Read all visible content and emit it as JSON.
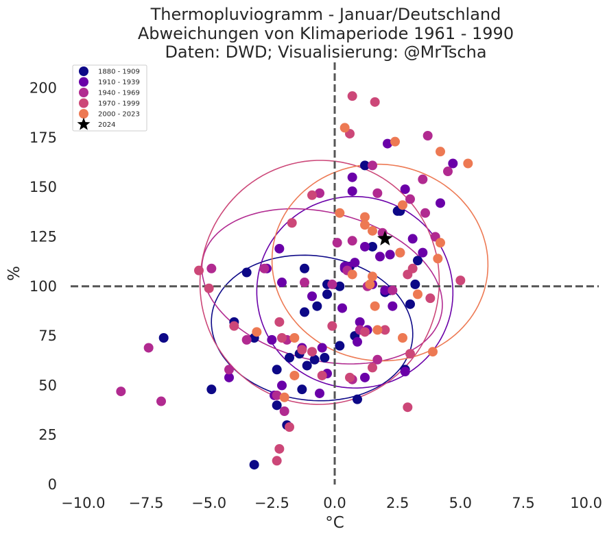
{
  "chart_data": {
    "type": "scatter",
    "title": [
      "Thermopluviogramm - Januar/Deutschland",
      "Abweichungen von Klimaperiode 1961 - 1990",
      "Daten: DWD; Visualisierung: @MrTscha"
    ],
    "xlabel": "°C",
    "ylabel": "%",
    "xlim": [
      -10.5,
      10.5
    ],
    "ylim": [
      0,
      213
    ],
    "xticks": [
      -10.0,
      -7.5,
      -5.0,
      -2.5,
      0.0,
      2.5,
      5.0,
      7.5,
      10.0
    ],
    "xtick_labels": [
      "−10.0",
      "−7.5",
      "−5.0",
      "−2.5",
      "0.0",
      "2.5",
      "5.0",
      "7.5",
      "10.0"
    ],
    "yticks": [
      0,
      25,
      50,
      75,
      100,
      125,
      150,
      175,
      200
    ],
    "ytick_labels": [
      "0",
      "25",
      "50",
      "75",
      "100",
      "125",
      "150",
      "175",
      "200"
    ],
    "reference_lines": {
      "x": 0,
      "y": 100,
      "style": "dashed",
      "color": "#555555"
    },
    "legend_position": "top-left",
    "grid": false,
    "series": [
      {
        "name": "1880 - 1909",
        "color": "#0d0887",
        "points": [
          [
            -6.8,
            74
          ],
          [
            -4.0,
            82
          ],
          [
            -3.5,
            107
          ],
          [
            -3.2,
            74
          ],
          [
            -3.2,
            10
          ],
          [
            -2.3,
            58
          ],
          [
            -2.3,
            40
          ],
          [
            -1.9,
            30
          ],
          [
            -1.8,
            64
          ],
          [
            -1.4,
            66
          ],
          [
            -1.3,
            48
          ],
          [
            -1.2,
            87
          ],
          [
            -1.1,
            60
          ],
          [
            -1.2,
            109
          ],
          [
            -0.8,
            63
          ],
          [
            -0.7,
            90
          ],
          [
            -0.4,
            64
          ],
          [
            -0.3,
            101
          ],
          [
            -0.3,
            96
          ],
          [
            0.2,
            70
          ],
          [
            0.2,
            100
          ],
          [
            0.6,
            110
          ],
          [
            0.8,
            75
          ],
          [
            0.9,
            43
          ],
          [
            1.2,
            161
          ],
          [
            1.5,
            120
          ],
          [
            2.0,
            97
          ],
          [
            2.2,
            98
          ],
          [
            2.5,
            138
          ],
          [
            2.6,
            138
          ],
          [
            2.8,
            58
          ],
          [
            3.0,
            91
          ],
          [
            3.2,
            101
          ],
          [
            3.3,
            113
          ],
          [
            -4.9,
            48
          ]
        ]
      },
      {
        "name": "1910 - 1939",
        "color": "#6a00a8",
        "points": [
          [
            -4.2,
            54
          ],
          [
            -2.7,
            109
          ],
          [
            -2.5,
            73
          ],
          [
            -2.4,
            45
          ],
          [
            -2.2,
            119
          ],
          [
            -2.1,
            102
          ],
          [
            -2.1,
            50
          ],
          [
            -1.3,
            69
          ],
          [
            -0.9,
            95
          ],
          [
            -0.6,
            46
          ],
          [
            -0.5,
            69
          ],
          [
            -0.3,
            56
          ],
          [
            0.3,
            89
          ],
          [
            0.4,
            110
          ],
          [
            0.4,
            109
          ],
          [
            0.5,
            110
          ],
          [
            0.7,
            148
          ],
          [
            0.7,
            155
          ],
          [
            0.8,
            112
          ],
          [
            0.9,
            72
          ],
          [
            1.0,
            82
          ],
          [
            1.2,
            120
          ],
          [
            1.2,
            54
          ],
          [
            1.3,
            78
          ],
          [
            1.5,
            101
          ],
          [
            1.8,
            115
          ],
          [
            2.0,
            98
          ],
          [
            2.2,
            116
          ],
          [
            2.3,
            90
          ],
          [
            2.8,
            149
          ],
          [
            2.8,
            57
          ],
          [
            3.1,
            124
          ],
          [
            3.5,
            117
          ],
          [
            4.2,
            142
          ],
          [
            4.7,
            162
          ],
          [
            2.1,
            172
          ]
        ]
      },
      {
        "name": "1940 - 1969",
        "color": "#b12a90",
        "points": [
          [
            -8.5,
            47
          ],
          [
            -7.4,
            69
          ],
          [
            -6.9,
            42
          ],
          [
            -4.9,
            109
          ],
          [
            -4.2,
            58
          ],
          [
            -3.5,
            73
          ],
          [
            -2.8,
            109
          ],
          [
            -2.3,
            45
          ],
          [
            -2.0,
            37
          ],
          [
            -1.9,
            73
          ],
          [
            -1.2,
            102
          ],
          [
            -0.6,
            147
          ],
          [
            -0.1,
            101
          ],
          [
            0.1,
            122
          ],
          [
            0.5,
            108
          ],
          [
            0.7,
            123
          ],
          [
            1.0,
            78
          ],
          [
            1.5,
            161
          ],
          [
            1.7,
            147
          ],
          [
            1.9,
            127
          ],
          [
            2.3,
            98
          ],
          [
            2.6,
            117
          ],
          [
            3.0,
            144
          ],
          [
            3.5,
            154
          ],
          [
            3.6,
            137
          ],
          [
            4.0,
            125
          ],
          [
            4.5,
            158
          ],
          [
            3.7,
            176
          ],
          [
            1.3,
            100
          ],
          [
            1.7,
            63
          ],
          [
            0.7,
            53
          ]
        ]
      },
      {
        "name": "1970 - 1999",
        "color": "#cc4778",
        "points": [
          [
            -5.4,
            108
          ],
          [
            -5.0,
            99
          ],
          [
            -4.0,
            80
          ],
          [
            -2.2,
            82
          ],
          [
            -2.1,
            74
          ],
          [
            -1.3,
            68
          ],
          [
            -0.1,
            80
          ],
          [
            -0.9,
            146
          ],
          [
            -1.7,
            132
          ],
          [
            -1.8,
            29
          ],
          [
            -2.2,
            18
          ],
          [
            -2.3,
            12
          ],
          [
            0.7,
            196
          ],
          [
            0.6,
            177
          ],
          [
            1.6,
            193
          ],
          [
            1.2,
            77
          ],
          [
            1.5,
            59
          ],
          [
            2.0,
            78
          ],
          [
            2.9,
            106
          ],
          [
            3.1,
            109
          ],
          [
            3.8,
            94
          ],
          [
            5.0,
            103
          ],
          [
            3.0,
            66
          ],
          [
            2.9,
            39
          ],
          [
            0.6,
            54
          ],
          [
            -0.5,
            55
          ],
          [
            -0.9,
            67
          ]
        ]
      },
      {
        "name": "2000 - 2023",
        "color": "#ed7953",
        "points": [
          [
            -3.1,
            77
          ],
          [
            -1.6,
            74
          ],
          [
            -1.6,
            55
          ],
          [
            -2.0,
            44
          ],
          [
            0.2,
            137
          ],
          [
            0.4,
            180
          ],
          [
            0.7,
            106
          ],
          [
            1.2,
            135
          ],
          [
            1.2,
            131
          ],
          [
            1.5,
            105
          ],
          [
            1.5,
            128
          ],
          [
            1.6,
            90
          ],
          [
            1.7,
            78
          ],
          [
            2.4,
            173
          ],
          [
            2.6,
            117
          ],
          [
            2.7,
            74
          ],
          [
            2.7,
            141
          ],
          [
            3.3,
            96
          ],
          [
            3.9,
            67
          ],
          [
            4.1,
            114
          ],
          [
            4.2,
            122
          ],
          [
            4.2,
            168
          ],
          [
            5.3,
            162
          ],
          [
            1.4,
            101
          ]
        ]
      },
      {
        "name": "2024",
        "color": "#000000",
        "marker": "star",
        "points": [
          [
            2.0,
            124
          ]
        ]
      }
    ],
    "ellipses": [
      {
        "series": "1880 - 1909",
        "color": "#0d0887",
        "center": [
          -0.9,
          79
        ],
        "rx": 4.3,
        "ry": 39,
        "angle_deg": 68
      },
      {
        "series": "1910 - 1939",
        "color": "#6a00a8",
        "center": [
          0.8,
          97
        ],
        "rx": 4.2,
        "ry": 52,
        "angle_deg": 67
      },
      {
        "series": "1940 - 1969",
        "color": "#b12a90",
        "center": [
          -0.5,
          100
        ],
        "rx": 6.0,
        "ry": 46,
        "angle_deg": 52
      },
      {
        "series": "1970 - 1999",
        "color": "#cc4778",
        "center": [
          -0.6,
          102
        ],
        "rx": 5.4,
        "ry": 70,
        "angle_deg": 60
      },
      {
        "series": "2000 - 2023",
        "color": "#ed7953",
        "center": [
          1.8,
          112
        ],
        "rx": 4.6,
        "ry": 53,
        "angle_deg": 68
      }
    ]
  }
}
